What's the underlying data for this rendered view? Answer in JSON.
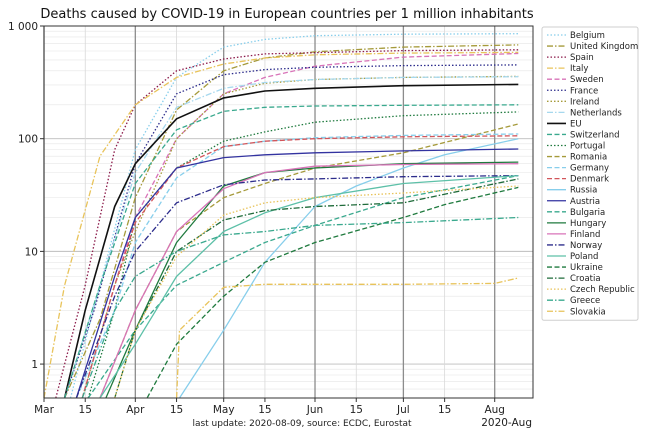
{
  "chart_data": {
    "type": "line",
    "title": "Deaths caused by COVID-19 in European countries per 1 million inhabitants",
    "footer": "last update: 2020-08-09, source: ECDC, Eurostat",
    "x_end_label": "2020-Aug",
    "y_scale": "log",
    "ylim": [
      0.5,
      1000
    ],
    "y_ticks": [
      {
        "value": 1,
        "label": "1"
      },
      {
        "value": 10,
        "label": "10"
      },
      {
        "value": 100,
        "label": "100"
      },
      {
        "value": 1000,
        "label": "1 000"
      }
    ],
    "xlim": [
      "2020-03-01",
      "2020-08-14"
    ],
    "x_ticks": [
      {
        "date": "2020-03-01",
        "label": "Mar"
      },
      {
        "date": "2020-03-15",
        "label": "15"
      },
      {
        "date": "2020-04-01",
        "label": "Apr"
      },
      {
        "date": "2020-04-15",
        "label": "15"
      },
      {
        "date": "2020-05-01",
        "label": "May"
      },
      {
        "date": "2020-05-15",
        "label": "15"
      },
      {
        "date": "2020-06-01",
        "label": "Jun"
      },
      {
        "date": "2020-06-15",
        "label": "15"
      },
      {
        "date": "2020-07-01",
        "label": "Jul"
      },
      {
        "date": "2020-07-15",
        "label": "15"
      },
      {
        "date": "2020-08-01",
        "label": "Aug"
      }
    ],
    "grid": true,
    "legend_position": "right",
    "series": [
      {
        "name": "Belgium",
        "color": "#87ceeb",
        "dash": "dot",
        "points": [
          [
            "2020-03-10",
            0.5
          ],
          [
            "2020-03-20",
            5
          ],
          [
            "2020-04-01",
            80
          ],
          [
            "2020-04-15",
            350
          ],
          [
            "2020-05-01",
            650
          ],
          [
            "2020-05-15",
            760
          ],
          [
            "2020-06-01",
            820
          ],
          [
            "2020-07-01",
            845
          ],
          [
            "2020-08-09",
            855
          ]
        ]
      },
      {
        "name": "United Kingdom",
        "color": "#a59a3a",
        "dash": "dashdot",
        "points": [
          [
            "2020-03-08",
            0.5
          ],
          [
            "2020-03-20",
            2.5
          ],
          [
            "2020-04-01",
            30
          ],
          [
            "2020-04-15",
            180
          ],
          [
            "2020-05-01",
            400
          ],
          [
            "2020-05-15",
            520
          ],
          [
            "2020-06-01",
            590
          ],
          [
            "2020-07-01",
            650
          ],
          [
            "2020-08-09",
            680
          ]
        ]
      },
      {
        "name": "Spain",
        "color": "#8b1a4a",
        "dash": "dot",
        "points": [
          [
            "2020-03-05",
            0.5
          ],
          [
            "2020-03-15",
            5
          ],
          [
            "2020-03-25",
            80
          ],
          [
            "2020-04-01",
            200
          ],
          [
            "2020-04-15",
            400
          ],
          [
            "2020-05-01",
            510
          ],
          [
            "2020-05-15",
            565
          ],
          [
            "2020-06-01",
            580
          ],
          [
            "2020-07-01",
            605
          ],
          [
            "2020-08-09",
            615
          ]
        ]
      },
      {
        "name": "Italy",
        "color": "#e8c35a",
        "dash": "dashdot",
        "points": [
          [
            "2020-03-01",
            0.5
          ],
          [
            "2020-03-08",
            5
          ],
          [
            "2020-03-20",
            70
          ],
          [
            "2020-04-01",
            200
          ],
          [
            "2020-04-15",
            350
          ],
          [
            "2020-05-01",
            460
          ],
          [
            "2020-05-15",
            520
          ],
          [
            "2020-06-01",
            555
          ],
          [
            "2020-07-01",
            575
          ],
          [
            "2020-08-09",
            583
          ]
        ]
      },
      {
        "name": "Sweden",
        "color": "#d873b8",
        "dash": "dash",
        "points": [
          [
            "2020-03-14",
            0.5
          ],
          [
            "2020-03-25",
            5
          ],
          [
            "2020-04-01",
            20
          ],
          [
            "2020-04-15",
            100
          ],
          [
            "2020-05-01",
            250
          ],
          [
            "2020-05-15",
            350
          ],
          [
            "2020-06-01",
            440
          ],
          [
            "2020-07-01",
            530
          ],
          [
            "2020-08-09",
            570
          ]
        ]
      },
      {
        "name": "France",
        "color": "#2d2d8c",
        "dash": "dot",
        "points": [
          [
            "2020-03-08",
            0.5
          ],
          [
            "2020-03-18",
            3
          ],
          [
            "2020-04-01",
            60
          ],
          [
            "2020-04-15",
            250
          ],
          [
            "2020-05-01",
            370
          ],
          [
            "2020-05-15",
            410
          ],
          [
            "2020-06-01",
            430
          ],
          [
            "2020-07-01",
            445
          ],
          [
            "2020-08-09",
            452
          ]
        ]
      },
      {
        "name": "Ireland",
        "color": "#a59a3a",
        "dash": "dot",
        "points": [
          [
            "2020-03-14",
            0.5
          ],
          [
            "2020-03-25",
            5
          ],
          [
            "2020-04-01",
            15
          ],
          [
            "2020-04-15",
            100
          ],
          [
            "2020-05-01",
            250
          ],
          [
            "2020-05-15",
            310
          ],
          [
            "2020-06-01",
            335
          ],
          [
            "2020-07-01",
            350
          ],
          [
            "2020-08-09",
            357
          ]
        ]
      },
      {
        "name": "Netherlands",
        "color": "#a6d8ee",
        "dash": "dashdot",
        "points": [
          [
            "2020-03-08",
            0.5
          ],
          [
            "2020-03-20",
            5
          ],
          [
            "2020-04-01",
            50
          ],
          [
            "2020-04-15",
            190
          ],
          [
            "2020-05-01",
            280
          ],
          [
            "2020-05-15",
            315
          ],
          [
            "2020-06-01",
            335
          ],
          [
            "2020-07-01",
            350
          ],
          [
            "2020-08-09",
            355
          ]
        ]
      },
      {
        "name": "EU",
        "color": "#111111",
        "dash": "solid",
        "width": 1.6,
        "points": [
          [
            "2020-03-08",
            0.5
          ],
          [
            "2020-03-15",
            3
          ],
          [
            "2020-03-25",
            25
          ],
          [
            "2020-04-01",
            60
          ],
          [
            "2020-04-15",
            150
          ],
          [
            "2020-05-01",
            230
          ],
          [
            "2020-05-15",
            265
          ],
          [
            "2020-06-01",
            280
          ],
          [
            "2020-07-01",
            295
          ],
          [
            "2020-08-09",
            303
          ]
        ]
      },
      {
        "name": "Switzerland",
        "color": "#3aa98e",
        "dash": "dash",
        "points": [
          [
            "2020-03-08",
            0.5
          ],
          [
            "2020-03-20",
            5
          ],
          [
            "2020-04-01",
            40
          ],
          [
            "2020-04-15",
            120
          ],
          [
            "2020-05-01",
            175
          ],
          [
            "2020-05-15",
            190
          ],
          [
            "2020-06-01",
            195
          ],
          [
            "2020-07-01",
            198
          ],
          [
            "2020-08-09",
            200
          ]
        ]
      },
      {
        "name": "Portugal",
        "color": "#1f7a3e",
        "dash": "dot",
        "points": [
          [
            "2020-03-16",
            0.5
          ],
          [
            "2020-03-25",
            3
          ],
          [
            "2020-04-01",
            20
          ],
          [
            "2020-04-15",
            55
          ],
          [
            "2020-05-01",
            95
          ],
          [
            "2020-05-15",
            115
          ],
          [
            "2020-06-01",
            140
          ],
          [
            "2020-07-01",
            160
          ],
          [
            "2020-08-09",
            173
          ]
        ]
      },
      {
        "name": "Romania",
        "color": "#a59a3a",
        "dash": "dash",
        "points": [
          [
            "2020-03-20",
            0.5
          ],
          [
            "2020-04-01",
            3
          ],
          [
            "2020-04-15",
            15
          ],
          [
            "2020-05-01",
            30
          ],
          [
            "2020-05-15",
            40
          ],
          [
            "2020-06-01",
            55
          ],
          [
            "2020-07-01",
            75
          ],
          [
            "2020-08-09",
            135
          ]
        ]
      },
      {
        "name": "Germany",
        "color": "#87ceeb",
        "dash": "dash",
        "points": [
          [
            "2020-03-12",
            0.5
          ],
          [
            "2020-03-25",
            3
          ],
          [
            "2020-04-01",
            12
          ],
          [
            "2020-04-15",
            45
          ],
          [
            "2020-05-01",
            85
          ],
          [
            "2020-05-15",
            95
          ],
          [
            "2020-06-01",
            102
          ],
          [
            "2020-07-01",
            107
          ],
          [
            "2020-08-09",
            110
          ]
        ]
      },
      {
        "name": "Denmark",
        "color": "#d2555a",
        "dash": "dash",
        "points": [
          [
            "2020-03-14",
            0.5
          ],
          [
            "2020-03-25",
            5
          ],
          [
            "2020-04-01",
            18
          ],
          [
            "2020-04-15",
            55
          ],
          [
            "2020-05-01",
            85
          ],
          [
            "2020-05-15",
            95
          ],
          [
            "2020-06-01",
            100
          ],
          [
            "2020-07-01",
            104
          ],
          [
            "2020-08-09",
            106
          ]
        ]
      },
      {
        "name": "Russia",
        "color": "#87ceeb",
        "dash": "solid",
        "points": [
          [
            "2020-04-16",
            0.5
          ],
          [
            "2020-05-01",
            2
          ],
          [
            "2020-05-15",
            8
          ],
          [
            "2020-06-01",
            25
          ],
          [
            "2020-06-15",
            38
          ],
          [
            "2020-07-01",
            55
          ],
          [
            "2020-07-15",
            72
          ],
          [
            "2020-08-09",
            100
          ]
        ]
      },
      {
        "name": "Austria",
        "color": "#3333a0",
        "dash": "solid",
        "points": [
          [
            "2020-03-12",
            0.5
          ],
          [
            "2020-03-25",
            6
          ],
          [
            "2020-04-01",
            20
          ],
          [
            "2020-04-15",
            55
          ],
          [
            "2020-05-01",
            68
          ],
          [
            "2020-05-15",
            72
          ],
          [
            "2020-06-01",
            75
          ],
          [
            "2020-07-01",
            78
          ],
          [
            "2020-08-09",
            81
          ]
        ]
      },
      {
        "name": "Bulgaria",
        "color": "#3aa98e",
        "dash": "dash",
        "points": [
          [
            "2020-03-16",
            0.5
          ],
          [
            "2020-04-01",
            2
          ],
          [
            "2020-04-15",
            5
          ],
          [
            "2020-05-01",
            8
          ],
          [
            "2020-05-15",
            12
          ],
          [
            "2020-06-01",
            17
          ],
          [
            "2020-07-01",
            30
          ],
          [
            "2020-08-09",
            47
          ]
        ]
      },
      {
        "name": "Hungary",
        "color": "#1f7a3e",
        "dash": "solid",
        "points": [
          [
            "2020-03-22",
            0.5
          ],
          [
            "2020-04-01",
            2
          ],
          [
            "2020-04-15",
            12
          ],
          [
            "2020-05-01",
            38
          ],
          [
            "2020-05-15",
            50
          ],
          [
            "2020-06-01",
            55
          ],
          [
            "2020-07-01",
            60
          ],
          [
            "2020-08-09",
            62
          ]
        ]
      },
      {
        "name": "Finland",
        "color": "#d873b8",
        "dash": "solid",
        "points": [
          [
            "2020-03-20",
            0.5
          ],
          [
            "2020-04-01",
            3
          ],
          [
            "2020-04-15",
            15
          ],
          [
            "2020-05-01",
            36
          ],
          [
            "2020-05-15",
            50
          ],
          [
            "2020-06-01",
            57
          ],
          [
            "2020-07-01",
            59
          ],
          [
            "2020-08-09",
            60
          ]
        ]
      },
      {
        "name": "Norway",
        "color": "#2d2d8c",
        "dash": "dashdot",
        "points": [
          [
            "2020-03-12",
            0.5
          ],
          [
            "2020-03-25",
            4
          ],
          [
            "2020-04-01",
            10
          ],
          [
            "2020-04-15",
            27
          ],
          [
            "2020-05-01",
            39
          ],
          [
            "2020-05-15",
            43
          ],
          [
            "2020-06-01",
            44
          ],
          [
            "2020-07-01",
            46
          ],
          [
            "2020-08-09",
            47
          ]
        ]
      },
      {
        "name": "Poland",
        "color": "#5dc0a8",
        "dash": "solid",
        "points": [
          [
            "2020-03-20",
            0.5
          ],
          [
            "2020-04-01",
            1.5
          ],
          [
            "2020-04-15",
            6
          ],
          [
            "2020-05-01",
            15
          ],
          [
            "2020-05-15",
            22
          ],
          [
            "2020-06-01",
            30
          ],
          [
            "2020-07-01",
            40
          ],
          [
            "2020-08-09",
            47
          ]
        ]
      },
      {
        "name": "Ukraine",
        "color": "#1f7a3e",
        "dash": "dash",
        "points": [
          [
            "2020-04-05",
            0.5
          ],
          [
            "2020-04-15",
            1.5
          ],
          [
            "2020-05-01",
            4
          ],
          [
            "2020-05-15",
            8
          ],
          [
            "2020-06-01",
            12
          ],
          [
            "2020-07-01",
            20
          ],
          [
            "2020-07-15",
            26
          ],
          [
            "2020-08-09",
            37
          ]
        ]
      },
      {
        "name": "Croatia",
        "color": "#1f6b3a",
        "dash": "dashdot",
        "points": [
          [
            "2020-03-25",
            0.5
          ],
          [
            "2020-04-01",
            2
          ],
          [
            "2020-04-15",
            10
          ],
          [
            "2020-05-01",
            19
          ],
          [
            "2020-05-15",
            23
          ],
          [
            "2020-06-01",
            25
          ],
          [
            "2020-07-01",
            27
          ],
          [
            "2020-08-09",
            44
          ]
        ]
      },
      {
        "name": "Czech Republic",
        "color": "#e8c35a",
        "dash": "dot",
        "points": [
          [
            "2020-03-25",
            0.5
          ],
          [
            "2020-04-01",
            2
          ],
          [
            "2020-04-15",
            9
          ],
          [
            "2020-05-01",
            21
          ],
          [
            "2020-05-15",
            27
          ],
          [
            "2020-06-01",
            30
          ],
          [
            "2020-07-01",
            33
          ],
          [
            "2020-08-09",
            38
          ]
        ]
      },
      {
        "name": "Greece",
        "color": "#3aa98e",
        "dash": "dashdot",
        "points": [
          [
            "2020-03-14",
            0.5
          ],
          [
            "2020-03-25",
            3
          ],
          [
            "2020-04-01",
            6
          ],
          [
            "2020-04-15",
            10
          ],
          [
            "2020-05-01",
            14
          ],
          [
            "2020-05-15",
            15
          ],
          [
            "2020-06-01",
            17
          ],
          [
            "2020-07-01",
            18
          ],
          [
            "2020-08-09",
            20
          ]
        ]
      },
      {
        "name": "Slovakia",
        "color": "#e8c35a",
        "dash": "dashdot",
        "points": [
          [
            "2020-04-15",
            0.5
          ],
          [
            "2020-04-16",
            2
          ],
          [
            "2020-05-01",
            4.8
          ],
          [
            "2020-05-15",
            5.1
          ],
          [
            "2020-06-01",
            5.1
          ],
          [
            "2020-07-01",
            5.1
          ],
          [
            "2020-08-01",
            5.2
          ],
          [
            "2020-08-09",
            5.8
          ]
        ]
      }
    ]
  }
}
